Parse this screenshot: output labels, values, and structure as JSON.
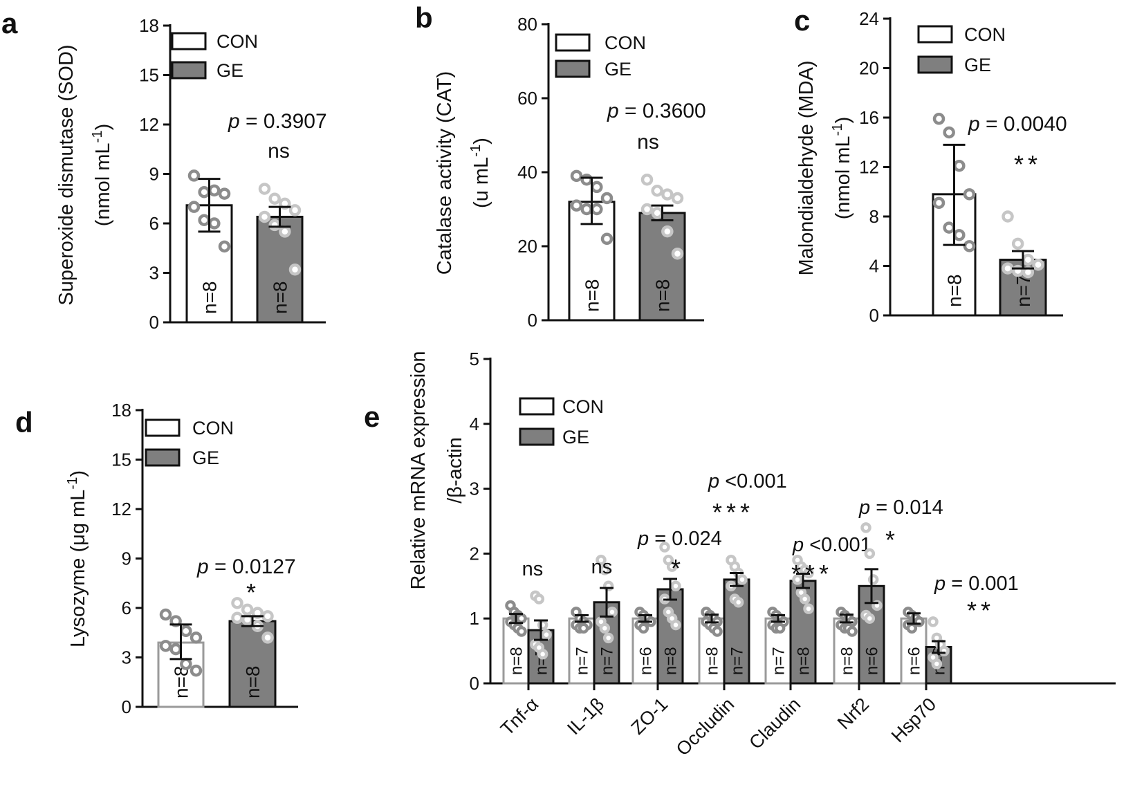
{
  "colors": {
    "con": "#ffffff",
    "ge": "#7f7f7f",
    "con_dot": "#8c8c8c",
    "ge_dot": "#c6c6c6",
    "axis": "#111111"
  },
  "legend": {
    "con": "CON",
    "ge": "GE"
  },
  "chart_data": [
    {
      "panel": "a",
      "type": "bar",
      "ylabel": [
        "Superoxide dismutase (SOD)",
        "(nmol mL",
        "-1",
        ")"
      ],
      "ylim": [
        0,
        18
      ],
      "yticks": [
        0,
        3,
        6,
        9,
        12,
        15,
        18
      ],
      "groups": [
        {
          "name": "CON",
          "mean": 7.1,
          "err_low": 5.5,
          "err_high": 8.7,
          "n": "n=8",
          "points": [
            8.9,
            7.9,
            8.0,
            7.8,
            7.0,
            6.2,
            6.0,
            4.6
          ]
        },
        {
          "name": "GE",
          "mean": 6.4,
          "err_low": 5.8,
          "err_high": 7.0,
          "n": "n=8",
          "points": [
            8.1,
            7.5,
            7.2,
            6.8,
            6.4,
            5.9,
            5.5,
            3.2
          ]
        }
      ],
      "annotations": [
        {
          "p": "p",
          "value": " = 0.3907",
          "sig": "ns"
        }
      ]
    },
    {
      "panel": "b",
      "type": "bar",
      "ylabel": [
        "Catalase activity (CAT)",
        "(u mL",
        "-1",
        ")"
      ],
      "ylim": [
        0,
        80
      ],
      "yticks": [
        0,
        20,
        40,
        60,
        80
      ],
      "groups": [
        {
          "name": "CON",
          "mean": 32,
          "err_low": 26,
          "err_high": 38.5,
          "n": "n=8",
          "points": [
            39,
            38,
            36,
            33,
            31,
            30,
            30,
            22
          ]
        },
        {
          "name": "GE",
          "mean": 29,
          "err_low": 27,
          "err_high": 31,
          "n": "n=8",
          "points": [
            38,
            35,
            34,
            33,
            30,
            29,
            24,
            18
          ]
        }
      ],
      "annotations": [
        {
          "p": "p",
          "value": " = 0.3600",
          "sig": "ns"
        }
      ]
    },
    {
      "panel": "c",
      "type": "bar",
      "ylabel": [
        "Malondialdehyde (MDA)",
        "(nmol mL",
        "-1",
        ")"
      ],
      "ylim": [
        0,
        24
      ],
      "yticks": [
        0,
        4,
        8,
        12,
        16,
        20,
        24
      ],
      "groups": [
        {
          "name": "CON",
          "mean": 9.8,
          "err_low": 5.7,
          "err_high": 13.8,
          "n": "n=8",
          "points": [
            15.9,
            14.8,
            12.1,
            9.8,
            9.1,
            7.1,
            6.5,
            5.6
          ]
        },
        {
          "name": "GE",
          "mean": 4.5,
          "err_low": 3.8,
          "err_high": 5.2,
          "n": "n=7",
          "points": [
            8.0,
            5.8,
            4.5,
            4.1,
            3.8,
            3.6,
            3.5
          ]
        }
      ],
      "annotations": [
        {
          "p": "p",
          "value": " = 0.0040",
          "sig": "**"
        }
      ]
    },
    {
      "panel": "d",
      "type": "bar",
      "ylabel": [
        "Lysozyme  (μg mL",
        "-1",
        ")"
      ],
      "ylim": [
        0,
        18
      ],
      "yticks": [
        0,
        3,
        6,
        9,
        12,
        15,
        18
      ],
      "groups": [
        {
          "name": "CON",
          "mean": 3.9,
          "err_low": 2.9,
          "err_high": 5.0,
          "n": "n=8",
          "points": [
            5.6,
            5.2,
            4.6,
            4.2,
            3.7,
            3.5,
            2.6,
            2.2
          ]
        },
        {
          "name": "GE",
          "mean": 5.2,
          "err_low": 4.9,
          "err_high": 5.5,
          "n": "n=8",
          "points": [
            6.3,
            5.9,
            5.7,
            5.5,
            5.4,
            5.3,
            4.9,
            4.2
          ]
        }
      ],
      "annotations": [
        {
          "p": "p",
          "value": " = 0.0127",
          "sig": "*"
        }
      ]
    },
    {
      "panel": "e",
      "type": "bar",
      "ylabel": [
        "Relative mRNA expression",
        "/β-actin"
      ],
      "ylim": [
        0,
        5
      ],
      "yticks": [
        0,
        1,
        2,
        3,
        4,
        5
      ],
      "categories": [
        "Tnf-α",
        "IL-1β",
        "ZO-1",
        "Occludin",
        "Claudin",
        "Nrf2",
        "Hsp70"
      ],
      "series": [
        {
          "name": "CON",
          "values": [
            1.0,
            1.0,
            1.0,
            1.0,
            1.0,
            1.0,
            1.0
          ],
          "err": [
            0.07,
            0.05,
            0.05,
            0.06,
            0.05,
            0.06,
            0.08
          ],
          "n": [
            "n=8",
            "n=7",
            "n=6",
            "n=8",
            "n=7",
            "n=8",
            "n=6"
          ],
          "points": [
            [
              1.2,
              1.1,
              1.05,
              1.0,
              0.95,
              0.9,
              0.85,
              0.8
            ],
            [
              1.1,
              1.0,
              0.95,
              0.9,
              0.9,
              0.85,
              0.85
            ],
            [
              1.1,
              1.05,
              1.0,
              0.95,
              0.9,
              0.85
            ],
            [
              1.1,
              1.05,
              1.0,
              0.95,
              0.95,
              0.9,
              0.85,
              0.8
            ],
            [
              1.1,
              1.05,
              1.0,
              0.95,
              0.9,
              0.85,
              0.85
            ],
            [
              1.1,
              1.05,
              1.0,
              0.95,
              0.9,
              0.85,
              0.85,
              0.8
            ],
            [
              1.1,
              1.05,
              1.0,
              0.95,
              0.9,
              0.85
            ]
          ]
        },
        {
          "name": "GE",
          "values": [
            0.82,
            1.25,
            1.45,
            1.6,
            1.58,
            1.5,
            0.56
          ],
          "err": [
            0.15,
            0.22,
            0.16,
            0.1,
            0.11,
            0.26,
            0.09
          ],
          "n": [
            "n=7",
            "n=7",
            "n=8",
            "n=7",
            "n=8",
            "n=6",
            "n=6"
          ],
          "points": [
            [
              1.35,
              1.3,
              0.9,
              0.75,
              0.6,
              0.55,
              0.45
            ],
            [
              1.9,
              1.75,
              1.5,
              1.1,
              0.95,
              0.85,
              0.7
            ],
            [
              2.1,
              1.9,
              1.8,
              1.5,
              1.3,
              1.1,
              1.0,
              0.9
            ],
            [
              1.9,
              1.8,
              1.7,
              1.6,
              1.5,
              1.3,
              1.25
            ],
            [
              1.9,
              1.8,
              1.75,
              1.7,
              1.6,
              1.4,
              1.3,
              1.15
            ],
            [
              2.4,
              2.0,
              1.6,
              1.2,
              1.05,
              1.0
            ],
            [
              0.95,
              0.7,
              0.6,
              0.5,
              0.4,
              0.3
            ]
          ]
        }
      ],
      "annotations": [
        {
          "category": "Tnf-α",
          "p": "",
          "value": "",
          "sig": "ns"
        },
        {
          "category": "IL-1β",
          "p": "",
          "value": "",
          "sig": "ns"
        },
        {
          "category": "ZO-1",
          "p": "p",
          "value": " = 0.024",
          "sig": "*"
        },
        {
          "category": "Occludin",
          "p": "p",
          "value": " <0.001",
          "sig": "***"
        },
        {
          "category": "Claudin",
          "p": "p",
          "value": " <0.001",
          "sig": "***"
        },
        {
          "category": "Nrf2",
          "p": "p",
          "value": " = 0.014",
          "sig": "*"
        },
        {
          "category": "Hsp70",
          "p": "p",
          "value": " = 0.001",
          "sig": "**"
        }
      ]
    }
  ]
}
